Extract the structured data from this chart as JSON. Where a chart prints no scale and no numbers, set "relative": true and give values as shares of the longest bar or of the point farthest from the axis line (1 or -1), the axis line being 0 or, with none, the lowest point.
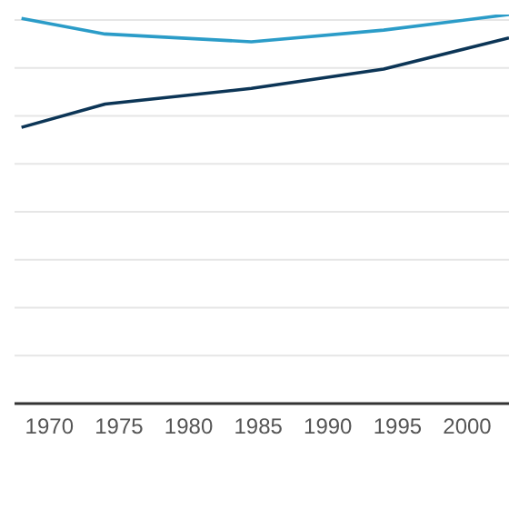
{
  "chart_data": {
    "type": "line",
    "relative": true,
    "grid": "y",
    "marker": "none",
    "tick_labels": "x",
    "x": [
      1968,
      1974,
      1984.5,
      1994,
      2003
    ],
    "xlim": [
      1967.5,
      2003
    ],
    "xticks": [
      1970,
      1975,
      1980,
      1985,
      1990,
      1995,
      2000
    ],
    "series": [
      {
        "color": "#2b9cc8",
        "values": [
          0.99,
          0.95,
          0.93,
          0.96,
          1
        ]
      },
      {
        "color": "#0c3556",
        "values": [
          0.71,
          0.77,
          0.81,
          0.86,
          0.94
        ]
      }
    ]
  }
}
